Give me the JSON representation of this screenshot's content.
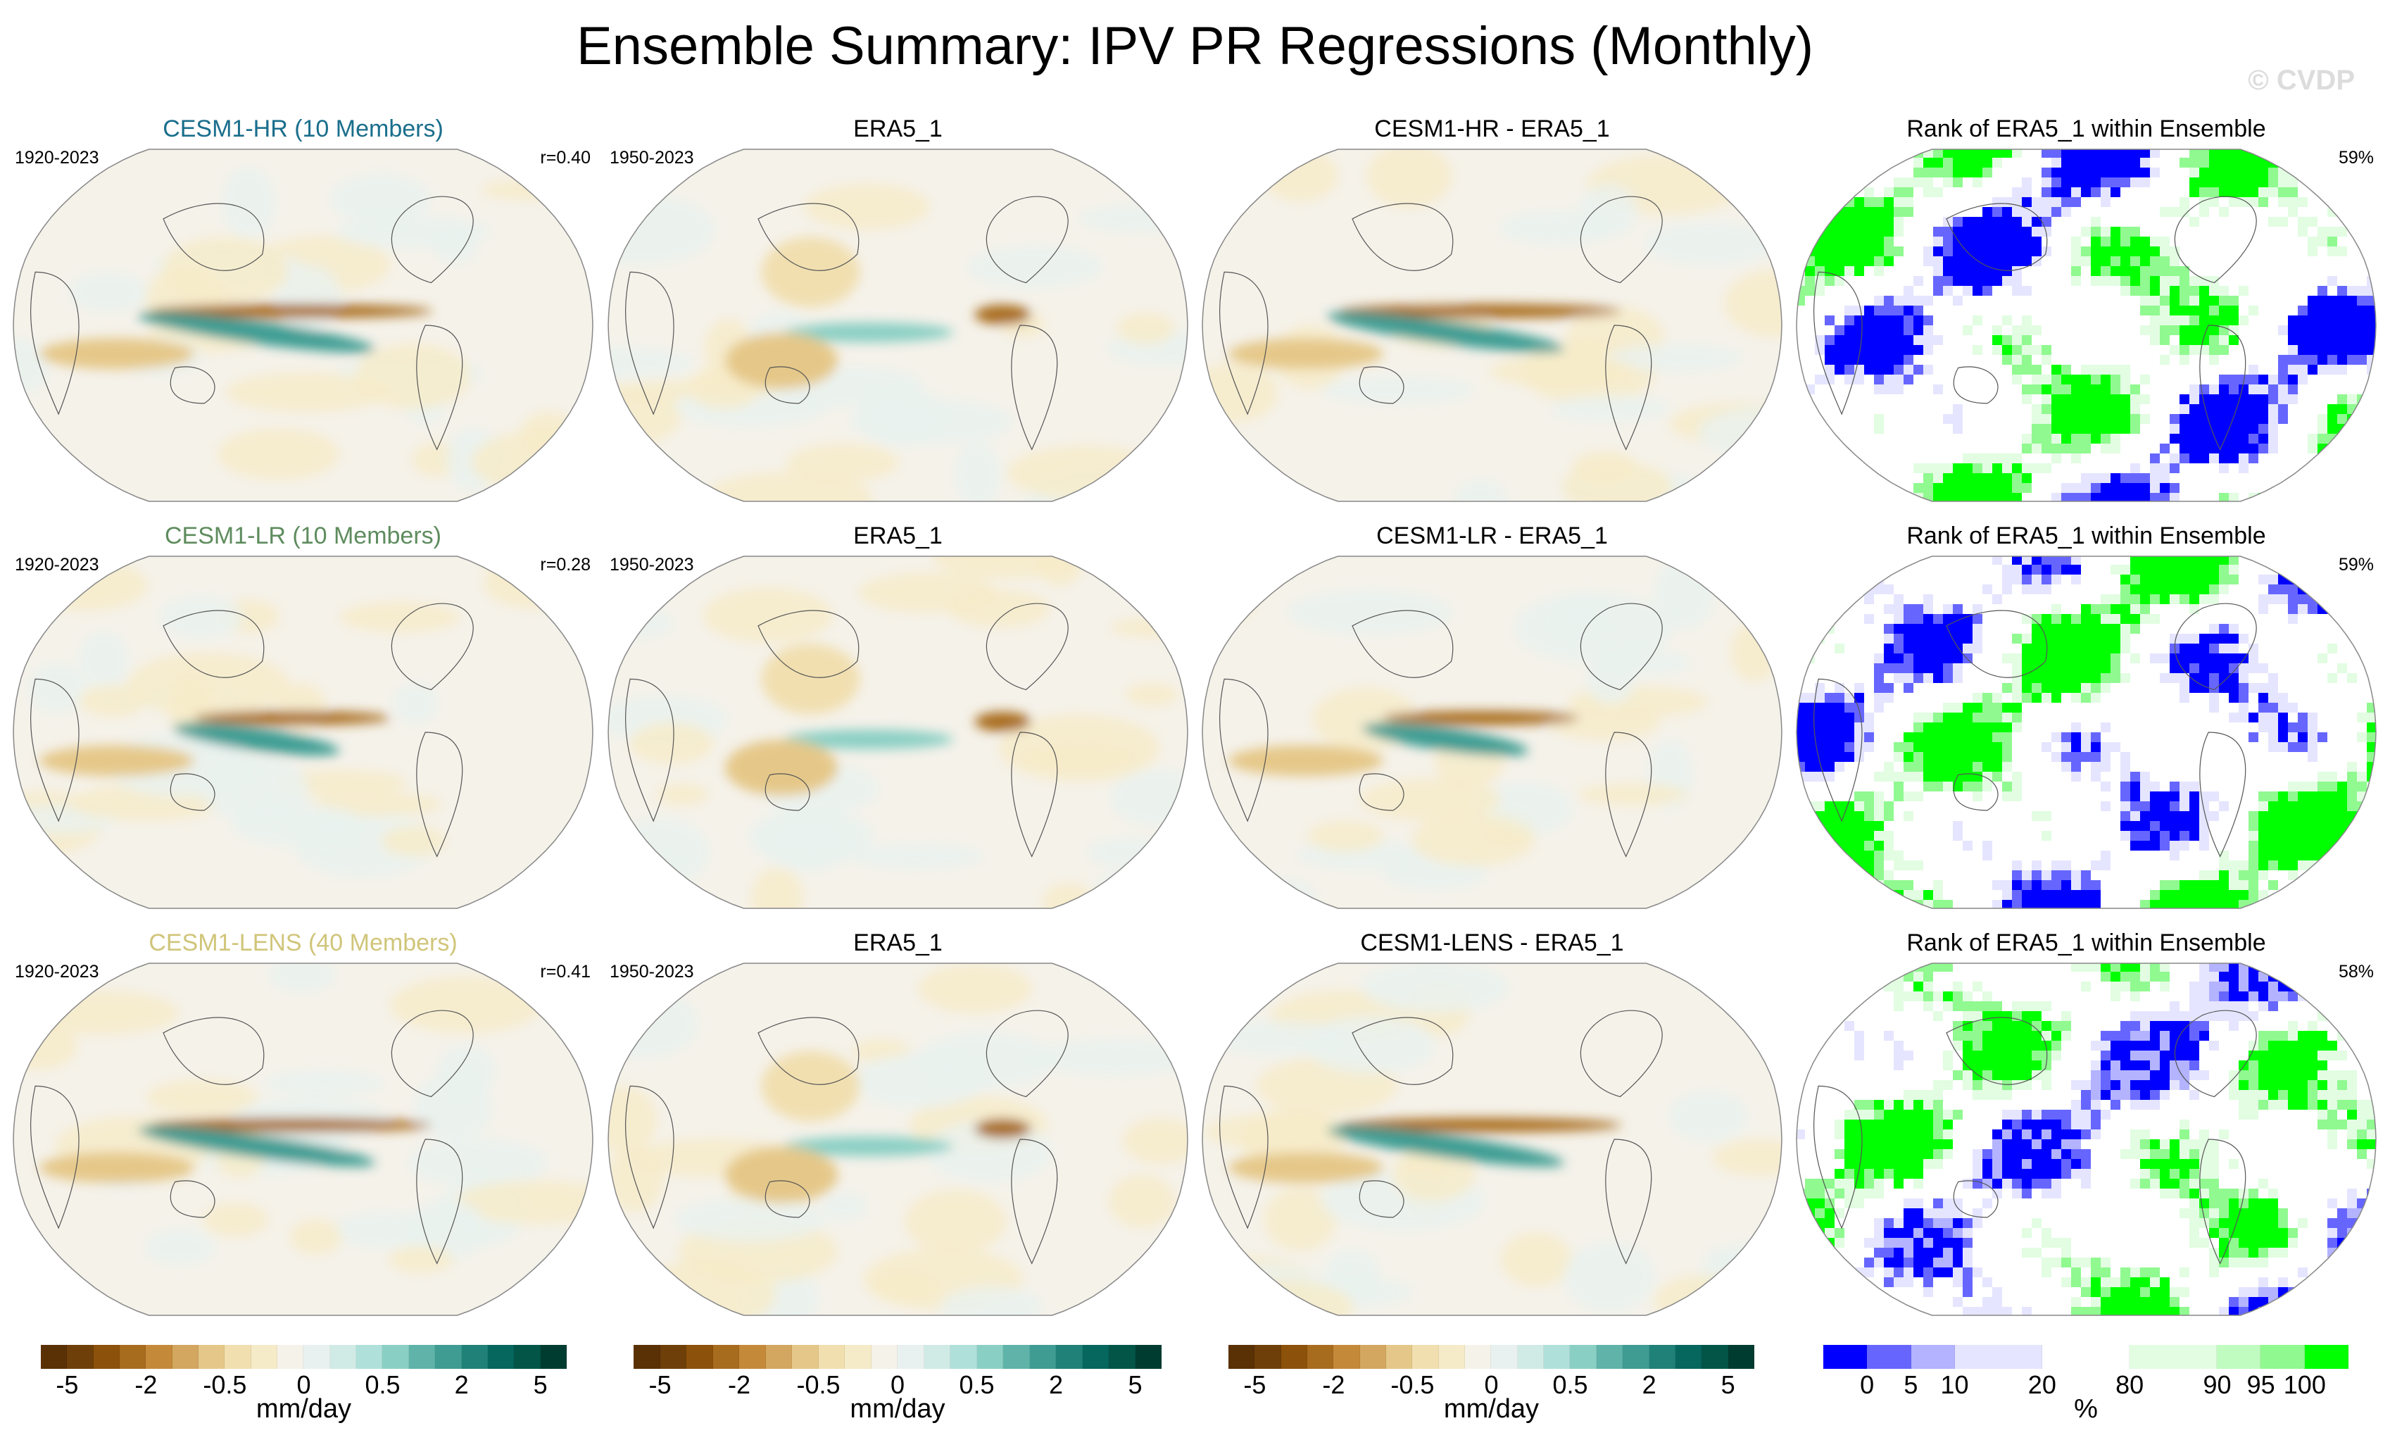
{
  "title": "Ensemble Summary: IPV PR Regressions (Monthly)",
  "watermark": "© CVDP",
  "rows": [
    {
      "panels": [
        {
          "title": "CESM1-HR (10 Members)",
          "title_color": "#1a6e8c",
          "left_label": "1920-2023",
          "right_label": "r=0.40",
          "kind": "model"
        },
        {
          "title": "ERA5_1",
          "title_color": "#000000",
          "left_label": "1950-2023",
          "right_label": "",
          "kind": "obs"
        },
        {
          "title": "CESM1-HR - ERA5_1",
          "title_color": "#000000",
          "left_label": "",
          "right_label": "",
          "kind": "diff"
        },
        {
          "title": "Rank of ERA5_1 within Ensemble",
          "title_color": "#000000",
          "left_label": "",
          "right_label": "59%",
          "kind": "rank"
        }
      ]
    },
    {
      "panels": [
        {
          "title": "CESM1-LR (10 Members)",
          "title_color": "#5e8c5e",
          "left_label": "1920-2023",
          "right_label": "r=0.28",
          "kind": "model"
        },
        {
          "title": "ERA5_1",
          "title_color": "#000000",
          "left_label": "1950-2023",
          "right_label": "",
          "kind": "obs"
        },
        {
          "title": "CESM1-LR - ERA5_1",
          "title_color": "#000000",
          "left_label": "",
          "right_label": "",
          "kind": "diff"
        },
        {
          "title": "Rank of ERA5_1 within Ensemble",
          "title_color": "#000000",
          "left_label": "",
          "right_label": "59%",
          "kind": "rank"
        }
      ]
    },
    {
      "panels": [
        {
          "title": "CESM1-LENS (40 Members)",
          "title_color": "#d0c57a",
          "left_label": "1920-2023",
          "right_label": "r=0.41",
          "kind": "model"
        },
        {
          "title": "ERA5_1",
          "title_color": "#000000",
          "left_label": "1950-2023",
          "right_label": "",
          "kind": "obs"
        },
        {
          "title": "CESM1-LENS - ERA5_1",
          "title_color": "#000000",
          "left_label": "",
          "right_label": "",
          "kind": "diff"
        },
        {
          "title": "Rank of ERA5_1 within Ensemble",
          "title_color": "#000000",
          "left_label": "",
          "right_label": "58%",
          "kind": "rank"
        }
      ]
    }
  ],
  "chart_data": {
    "type": "heatmap",
    "projection": "Robinson",
    "colorbars": [
      {
        "label": "mm/day",
        "colors": [
          "#5a3005",
          "#6e3f09",
          "#8c510a",
          "#a86c1f",
          "#c48a3a",
          "#d3a760",
          "#e5c889",
          "#f1dfb0",
          "#f6ebc8",
          "#f5f2ea",
          "#e8f1ef",
          "#d0ebe6",
          "#b0e0da",
          "#8acfc4",
          "#5fb3a8",
          "#3e9c93",
          "#1f8178",
          "#06675f",
          "#035547",
          "#003c30"
        ],
        "tick_labels": [
          "-5",
          "-2",
          "-0.5",
          "0",
          "0.5",
          "2",
          "5"
        ]
      },
      {
        "label": "%",
        "colors": [
          "#0000ff",
          "#6666ff",
          "#b3b3ff",
          "#e5e5ff",
          "#ffffff",
          "#e2fde2",
          "#c0fbc0",
          "#90f990",
          "#00ff00"
        ],
        "tick_labels": [
          "0",
          "5",
          "10",
          "20",
          "80",
          "90",
          "95",
          "100"
        ]
      }
    ]
  }
}
